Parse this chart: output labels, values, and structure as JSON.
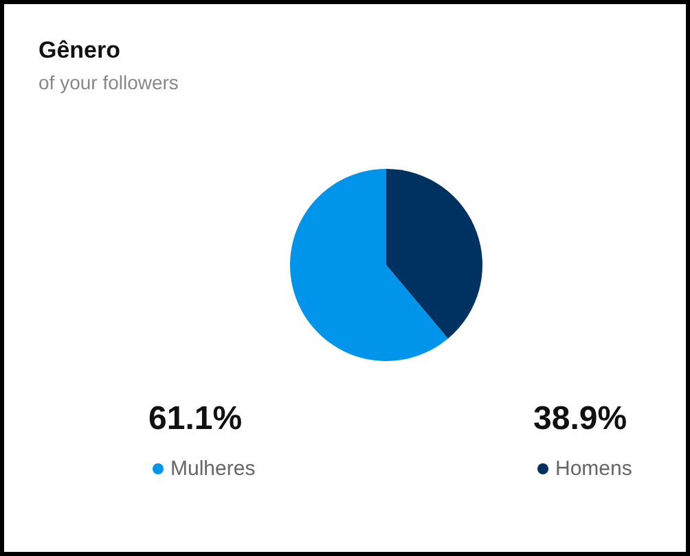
{
  "chart_data": {
    "type": "pie",
    "title": "Gênero",
    "subtitle": "of your followers",
    "categories": [
      "Mulheres",
      "Homens"
    ],
    "values": [
      61.1,
      38.9
    ],
    "colors": [
      "#0095eb",
      "#003261"
    ],
    "value_labels": [
      "61.1%",
      "38.9%"
    ],
    "legend": "bottom"
  }
}
